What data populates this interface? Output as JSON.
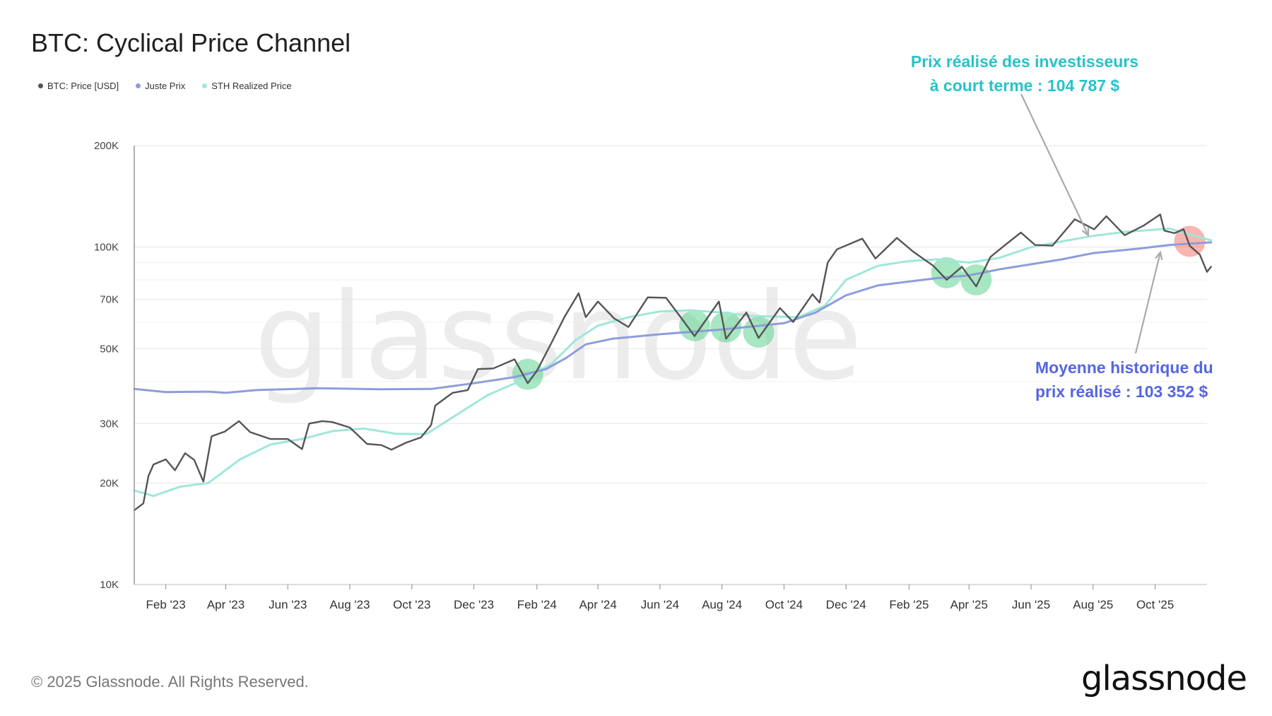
{
  "title": "BTC: Cyclical Price Channel",
  "legend": [
    {
      "label": "BTC: Price [USD]",
      "color": "#555555"
    },
    {
      "label": "Juste Prix",
      "color": "#8e9ddb"
    },
    {
      "label": "STH Realized Price",
      "color": "#9fe7da"
    }
  ],
  "annotations": {
    "sth_line1": "Prix réalisé des investisseurs",
    "sth_line2": "à court terme : 104 787 $",
    "mean_line1": "Moyenne historique du",
    "mean_line2": "prix réalisé : 103 352 $"
  },
  "watermark": "glassnode",
  "footer": {
    "copyright": "© 2025 Glassnode. All Rights Reserved.",
    "brand": "glassnode"
  },
  "chart_data": {
    "type": "line",
    "title": "BTC: Cyclical Price Channel",
    "y_scale": "log",
    "ylim": [
      10000,
      200000
    ],
    "xlim": [
      "2023-01-01",
      "2025-11-21"
    ],
    "y_ticks": [
      {
        "value": 10000,
        "label": "10K"
      },
      {
        "value": 20000,
        "label": "20K"
      },
      {
        "value": 30000,
        "label": "30K"
      },
      {
        "value": 50000,
        "label": "50K"
      },
      {
        "value": 70000,
        "label": "70K"
      },
      {
        "value": 100000,
        "label": "100K"
      },
      {
        "value": 200000,
        "label": "200K"
      }
    ],
    "x_ticks": [
      {
        "date": "2023-02-01",
        "label": "Feb '23"
      },
      {
        "date": "2023-04-01",
        "label": "Apr '23"
      },
      {
        "date": "2023-06-01",
        "label": "Jun '23"
      },
      {
        "date": "2023-08-01",
        "label": "Aug '23"
      },
      {
        "date": "2023-10-01",
        "label": "Oct '23"
      },
      {
        "date": "2023-12-01",
        "label": "Dec '23"
      },
      {
        "date": "2024-02-01",
        "label": "Feb '24"
      },
      {
        "date": "2024-04-01",
        "label": "Apr '24"
      },
      {
        "date": "2024-06-01",
        "label": "Jun '24"
      },
      {
        "date": "2024-08-01",
        "label": "Aug '24"
      },
      {
        "date": "2024-10-01",
        "label": "Oct '24"
      },
      {
        "date": "2024-12-01",
        "label": "Dec '24"
      },
      {
        "date": "2025-02-01",
        "label": "Feb '25"
      },
      {
        "date": "2025-04-01",
        "label": "Apr '25"
      },
      {
        "date": "2025-06-01",
        "label": "Jun '25"
      },
      {
        "date": "2025-08-01",
        "label": "Aug '25"
      },
      {
        "date": "2025-10-01",
        "label": "Oct '25"
      }
    ],
    "series": [
      {
        "name": "BTC: Price [USD]",
        "color": "#555555",
        "points": [
          [
            "2023-01-01",
            16600
          ],
          [
            "2023-01-10",
            17400
          ],
          [
            "2023-01-15",
            21000
          ],
          [
            "2023-01-20",
            22700
          ],
          [
            "2023-02-01",
            23500
          ],
          [
            "2023-02-10",
            21800
          ],
          [
            "2023-02-20",
            24500
          ],
          [
            "2023-03-01",
            23400
          ],
          [
            "2023-03-10",
            20200
          ],
          [
            "2023-03-18",
            27500
          ],
          [
            "2023-03-31",
            28400
          ],
          [
            "2023-04-14",
            30500
          ],
          [
            "2023-04-25",
            28300
          ],
          [
            "2023-05-15",
            27000
          ],
          [
            "2023-06-01",
            27000
          ],
          [
            "2023-06-15",
            25200
          ],
          [
            "2023-06-22",
            30000
          ],
          [
            "2023-07-05",
            30500
          ],
          [
            "2023-07-15",
            30300
          ],
          [
            "2023-08-01",
            29200
          ],
          [
            "2023-08-18",
            26100
          ],
          [
            "2023-09-01",
            25900
          ],
          [
            "2023-09-11",
            25100
          ],
          [
            "2023-09-25",
            26300
          ],
          [
            "2023-10-10",
            27300
          ],
          [
            "2023-10-20",
            29700
          ],
          [
            "2023-10-24",
            33900
          ],
          [
            "2023-11-10",
            37000
          ],
          [
            "2023-11-25",
            37700
          ],
          [
            "2023-12-05",
            43500
          ],
          [
            "2023-12-20",
            43700
          ],
          [
            "2024-01-10",
            46500
          ],
          [
            "2024-01-23",
            39500
          ],
          [
            "2024-02-01",
            43000
          ],
          [
            "2024-02-15",
            51800
          ],
          [
            "2024-02-28",
            62000
          ],
          [
            "2024-03-13",
            73000
          ],
          [
            "2024-03-20",
            62000
          ],
          [
            "2024-04-01",
            69000
          ],
          [
            "2024-04-17",
            61500
          ],
          [
            "2024-05-01",
            58000
          ],
          [
            "2024-05-20",
            71000
          ],
          [
            "2024-06-07",
            70800
          ],
          [
            "2024-06-24",
            60500
          ],
          [
            "2024-07-05",
            54500
          ],
          [
            "2024-07-29",
            69000
          ],
          [
            "2024-08-05",
            53500
          ],
          [
            "2024-08-25",
            64000
          ],
          [
            "2024-09-06",
            53800
          ],
          [
            "2024-09-27",
            66000
          ],
          [
            "2024-10-10",
            60000
          ],
          [
            "2024-10-29",
            72500
          ],
          [
            "2024-11-05",
            68500
          ],
          [
            "2024-11-13",
            90000
          ],
          [
            "2024-11-22",
            98500
          ],
          [
            "2024-12-17",
            106000
          ],
          [
            "2024-12-30",
            92500
          ],
          [
            "2025-01-20",
            106500
          ],
          [
            "2025-02-05",
            97000
          ],
          [
            "2025-02-25",
            88000
          ],
          [
            "2025-03-10",
            80000
          ],
          [
            "2025-03-25",
            87500
          ],
          [
            "2025-04-08",
            76500
          ],
          [
            "2025-04-22",
            93500
          ],
          [
            "2025-05-10",
            103500
          ],
          [
            "2025-05-22",
            110500
          ],
          [
            "2025-06-05",
            101500
          ],
          [
            "2025-06-22",
            101000
          ],
          [
            "2025-07-14",
            121000
          ],
          [
            "2025-08-02",
            113000
          ],
          [
            "2025-08-14",
            123500
          ],
          [
            "2025-09-01",
            108500
          ],
          [
            "2025-09-20",
            116000
          ],
          [
            "2025-10-06",
            125000
          ],
          [
            "2025-10-10",
            112000
          ],
          [
            "2025-10-20",
            110000
          ],
          [
            "2025-10-29",
            113000
          ],
          [
            "2025-11-04",
            101000
          ],
          [
            "2025-11-14",
            95000
          ],
          [
            "2025-11-21",
            84500
          ],
          [
            "2025-11-25",
            87500
          ]
        ]
      },
      {
        "name": "Juste Prix",
        "color": "#8e9ddb",
        "points": [
          [
            "2023-01-01",
            38000
          ],
          [
            "2023-02-01",
            37200
          ],
          [
            "2023-03-15",
            37300
          ],
          [
            "2023-04-01",
            37000
          ],
          [
            "2023-05-01",
            37700
          ],
          [
            "2023-07-01",
            38200
          ],
          [
            "2023-09-01",
            37900
          ],
          [
            "2023-10-20",
            38000
          ],
          [
            "2023-12-01",
            39500
          ],
          [
            "2024-01-10",
            41200
          ],
          [
            "2024-02-10",
            43500
          ],
          [
            "2024-03-01",
            47000
          ],
          [
            "2024-03-20",
            51500
          ],
          [
            "2024-04-15",
            53500
          ],
          [
            "2024-06-01",
            55200
          ],
          [
            "2024-08-01",
            57000
          ],
          [
            "2024-10-01",
            59500
          ],
          [
            "2024-11-01",
            64000
          ],
          [
            "2024-12-01",
            72000
          ],
          [
            "2025-01-01",
            77000
          ],
          [
            "2025-03-01",
            81000
          ],
          [
            "2025-04-01",
            82500
          ],
          [
            "2025-05-01",
            86000
          ],
          [
            "2025-07-01",
            92000
          ],
          [
            "2025-08-01",
            96000
          ],
          [
            "2025-09-15",
            99000
          ],
          [
            "2025-10-15",
            101500
          ],
          [
            "2025-11-25",
            103352
          ]
        ]
      },
      {
        "name": "STH Realized Price",
        "color": "#9fe7da",
        "points": [
          [
            "2023-01-01",
            19000
          ],
          [
            "2023-01-20",
            18300
          ],
          [
            "2023-02-15",
            19500
          ],
          [
            "2023-03-15",
            20000
          ],
          [
            "2023-04-15",
            23500
          ],
          [
            "2023-05-15",
            26000
          ],
          [
            "2023-06-15",
            27000
          ],
          [
            "2023-07-15",
            28500
          ],
          [
            "2023-08-15",
            29000
          ],
          [
            "2023-09-15",
            28000
          ],
          [
            "2023-10-15",
            27900
          ],
          [
            "2023-11-15",
            32000
          ],
          [
            "2023-12-15",
            36500
          ],
          [
            "2024-01-15",
            40000
          ],
          [
            "2024-02-15",
            45000
          ],
          [
            "2024-03-10",
            53000
          ],
          [
            "2024-04-01",
            58500
          ],
          [
            "2024-05-01",
            62000
          ],
          [
            "2024-06-01",
            64500
          ],
          [
            "2024-07-01",
            65000
          ],
          [
            "2024-08-01",
            64000
          ],
          [
            "2024-09-01",
            62500
          ],
          [
            "2024-10-15",
            62000
          ],
          [
            "2024-11-10",
            67000
          ],
          [
            "2024-12-01",
            80000
          ],
          [
            "2025-01-01",
            88000
          ],
          [
            "2025-02-01",
            91000
          ],
          [
            "2025-03-01",
            92000
          ],
          [
            "2025-04-01",
            90000
          ],
          [
            "2025-05-01",
            93000
          ],
          [
            "2025-06-01",
            100000
          ],
          [
            "2025-07-01",
            104000
          ],
          [
            "2025-08-01",
            108000
          ],
          [
            "2025-09-01",
            111000
          ],
          [
            "2025-10-15",
            113500
          ],
          [
            "2025-11-25",
            104787
          ]
        ]
      }
    ],
    "highlights": [
      {
        "date": "2024-01-23",
        "value": 42000,
        "color": "#5fd38f"
      },
      {
        "date": "2024-07-05",
        "value": 58500,
        "color": "#5fd38f"
      },
      {
        "date": "2024-08-05",
        "value": 58000,
        "color": "#5fd38f"
      },
      {
        "date": "2024-09-06",
        "value": 56000,
        "color": "#5fd38f"
      },
      {
        "date": "2025-03-10",
        "value": 84000,
        "color": "#5fd38f"
      },
      {
        "date": "2025-04-08",
        "value": 80000,
        "color": "#5fd38f"
      },
      {
        "date": "2025-11-04",
        "value": 104000,
        "color": "#f07a6d"
      }
    ]
  }
}
